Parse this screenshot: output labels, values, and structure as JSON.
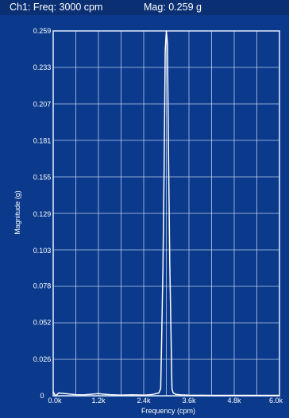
{
  "status": {
    "channel_readout": "Ch1:  Freq: 3000 cpm",
    "magnitude_readout": "Mag: 0.259 g"
  },
  "colors": {
    "background": "#0b3a8c",
    "status_bar": "#0a2f73",
    "grid": "#d6e3f7",
    "trace": "#ffffff"
  },
  "chart_data": {
    "type": "line",
    "title": "",
    "xlabel": "Frequency (cpm)",
    "ylabel": "Magnitude (g)",
    "xlim": [
      0,
      6000
    ],
    "ylim": [
      0,
      0.259
    ],
    "x_ticks": [
      0,
      1200,
      2400,
      3600,
      4800,
      6000
    ],
    "x_tick_labels": [
      "0.0k",
      "1.2k",
      "2.4k",
      "3.6k",
      "4.8k",
      "6.0k"
    ],
    "y_ticks": [
      0,
      0.026,
      0.052,
      0.078,
      0.103,
      0.129,
      0.155,
      0.181,
      0.207,
      0.233,
      0.259
    ],
    "y_tick_labels": [
      "0",
      "0.026",
      "0.052",
      "0.078",
      "0.103",
      "0.129",
      "0.155",
      "0.181",
      "0.207",
      "0.233",
      "0.259"
    ],
    "grid": true,
    "series": [
      {
        "x": [
          0,
          60,
          150,
          600,
          800,
          1200,
          1500,
          1800,
          2100,
          2400,
          2500,
          2650,
          2800,
          2850,
          2880,
          2910,
          2940,
          2970,
          3000,
          3030,
          3060,
          3090,
          3120,
          3150,
          3180,
          3250,
          3400,
          3600,
          4200,
          4800,
          5400,
          6000
        ],
        "y": [
          0.003,
          0.0,
          0.002,
          0.0008,
          0.0006,
          0.0015,
          0.0008,
          0.0005,
          0.0007,
          0.0005,
          0.0006,
          0.001,
          0.002,
          0.005,
          0.046,
          0.09,
          0.16,
          0.245,
          0.259,
          0.25,
          0.17,
          0.095,
          0.05,
          0.005,
          0.002,
          0.001,
          0.0006,
          0.0004,
          0.0003,
          0.0003,
          0.0003,
          0.0003
        ]
      }
    ]
  }
}
